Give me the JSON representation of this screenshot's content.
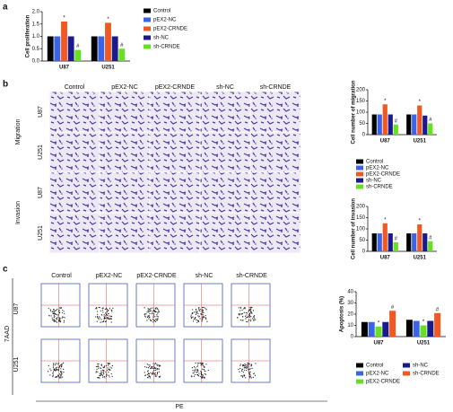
{
  "panel_labels": [
    "a",
    "b",
    "c"
  ],
  "migration_assay": {
    "columns": [
      "Control",
      "pEX2-NC",
      "pEX2-CRNDE",
      "sh-NC",
      "sh-CRNDE"
    ],
    "groups": [
      {
        "label": "Migration",
        "rows": [
          "U87",
          "U251"
        ]
      },
      {
        "label": "Invasion",
        "rows": [
          "U87",
          "U251"
        ]
      }
    ]
  },
  "flow_cytometry": {
    "columns": [
      "Control",
      "pEX2-NC",
      "pEX2-CRNDE",
      "sh-NC",
      "sh-CRNDE"
    ],
    "rows": [
      "U87",
      "U251"
    ],
    "y_label": "7AAD",
    "x_label": "PE"
  },
  "chart_data": [
    {
      "type": "bar",
      "y_label": "Cell proliferation",
      "categories": [
        "U87",
        "U251"
      ],
      "ylim": [
        0,
        2
      ],
      "yticks": [
        {
          "value": 0,
          "label": "0.0"
        },
        {
          "value": 0.5,
          "label": "0.5"
        },
        {
          "value": 1,
          "label": "1.0"
        },
        {
          "value": 1.5,
          "label": "1.5"
        },
        {
          "value": 2,
          "label": "2.0"
        }
      ],
      "legend": "right",
      "series": [
        {
          "name": "Control",
          "color": "#000000",
          "values": [
            1.0,
            1.0
          ]
        },
        {
          "name": "pEX2-NC",
          "color": "#3a63e8",
          "values": [
            1.0,
            1.0
          ]
        },
        {
          "name": "pEX2-CRNDE",
          "color": "#f05a22",
          "values": [
            1.6,
            1.55
          ],
          "significance": [
            "*",
            "*"
          ]
        },
        {
          "name": "sh-NC",
          "color": "#1a1a8c",
          "values": [
            1.0,
            1.0
          ]
        },
        {
          "name": "sh-CRNDE",
          "color": "#66e020",
          "values": [
            0.45,
            0.5
          ],
          "significance": [
            "#",
            "#"
          ]
        }
      ]
    },
    {
      "type": "bar",
      "y_label": "Cell number of migration",
      "categories": [
        "U87",
        "U251"
      ],
      "ylim": [
        0,
        200
      ],
      "yticks": [
        0,
        50,
        100,
        150,
        200
      ],
      "series": [
        {
          "color": "#000000",
          "values": [
            90,
            90
          ]
        },
        {
          "color": "#3a63e8",
          "values": [
            90,
            90
          ]
        },
        {
          "color": "#f05a22",
          "values": [
            135,
            130
          ],
          "significance": [
            "*",
            "*"
          ]
        },
        {
          "color": "#1a1a8c",
          "values": [
            90,
            85
          ]
        },
        {
          "color": "#66e020",
          "values": [
            45,
            50
          ],
          "significance": [
            "#",
            "#"
          ]
        }
      ]
    },
    {
      "type": "bar",
      "y_label": "Cell number of invasion",
      "categories": [
        "U87",
        "U251"
      ],
      "ylim": [
        0,
        200
      ],
      "yticks": [
        0,
        50,
        100,
        150,
        200
      ],
      "legend": "above",
      "series": [
        {
          "name": "Control",
          "color": "#000000",
          "values": [
            80,
            80
          ]
        },
        {
          "name": "pEX2-NC",
          "color": "#3a63e8",
          "values": [
            80,
            80
          ]
        },
        {
          "name": "pEX2-CRNDE",
          "color": "#f05a22",
          "values": [
            125,
            120
          ],
          "significance": [
            "*",
            "*"
          ]
        },
        {
          "name": "sh-NC",
          "color": "#1a1a8c",
          "values": [
            80,
            80
          ]
        },
        {
          "name": "sh-CRNDE",
          "color": "#66e020",
          "values": [
            40,
            45
          ],
          "significance": [
            "#",
            "#"
          ]
        }
      ]
    },
    {
      "type": "bar",
      "y_label": "Apoptosis (%)",
      "categories": [
        "U87",
        "U251"
      ],
      "ylim": [
        0,
        40
      ],
      "yticks": [
        0,
        10,
        20,
        30,
        40
      ],
      "legend": "below",
      "series": [
        {
          "name": "Control",
          "color": "#000000",
          "values": [
            13,
            15
          ]
        },
        {
          "name": "pEX2-NC",
          "color": "#3a63e8",
          "values": [
            13,
            14
          ]
        },
        {
          "name": "pEX2-CRNDE",
          "color": "#66e020",
          "values": [
            9,
            10
          ],
          "significance": [
            "*",
            "*"
          ]
        },
        {
          "name": "sh-NC",
          "color": "#1a1a8c",
          "values": [
            13,
            14
          ]
        },
        {
          "name": "sh-CRNDE",
          "color": "#f05a22",
          "values": [
            23,
            21
          ],
          "significance": [
            "#",
            "#"
          ]
        }
      ]
    }
  ]
}
